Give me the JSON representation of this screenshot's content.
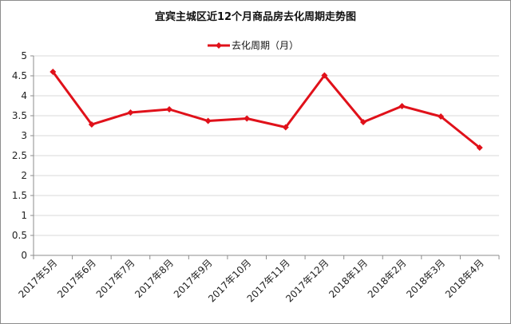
{
  "chart_data": {
    "type": "line",
    "title": "宜宾主城区近12个月商品房去化周期走势图",
    "categories": [
      "2017年5月",
      "2017年6月",
      "2017年7月",
      "2017年8月",
      "2017年9月",
      "2017年10月",
      "2017年11月",
      "2017年12月",
      "2018年1月",
      "2018年2月",
      "2018年3月",
      "2018年4月"
    ],
    "series": [
      {
        "name": "去化周期（月）",
        "values": [
          4.6,
          3.28,
          3.58,
          3.66,
          3.37,
          3.43,
          3.21,
          4.51,
          3.34,
          3.74,
          3.48,
          2.7
        ]
      }
    ],
    "ylim": [
      0,
      5
    ],
    "yticks": [
      "0",
      "0.5",
      "1",
      "1.5",
      "2",
      "2.5",
      "3",
      "3.5",
      "4",
      "4.5",
      "5"
    ],
    "xlabel": "",
    "ylabel": "",
    "grid": "horizontal",
    "legend_position": "top",
    "colors": {
      "series": "#e0111a",
      "grid": "#d9d9d9",
      "axis": "#8c8c8c"
    }
  }
}
